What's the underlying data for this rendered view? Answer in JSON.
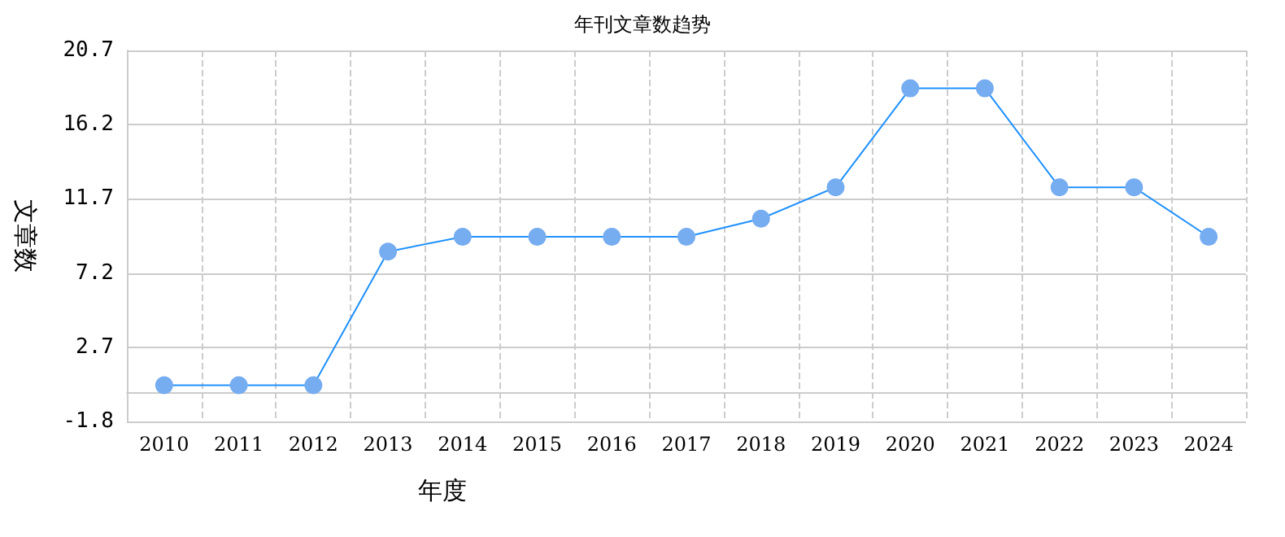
{
  "chart_data": {
    "type": "line",
    "title": "年刊文章数趋势",
    "xlabel": "年度",
    "ylabel": "文章数",
    "categories": [
      "2010",
      "2011",
      "2012",
      "2013",
      "2014",
      "2015",
      "2016",
      "2017",
      "2018",
      "2019",
      "2020",
      "2021",
      "2022",
      "2023",
      "2024"
    ],
    "series": [
      {
        "color": "#1e90ff",
        "values": [
          0.4,
          0.4,
          0.4,
          8.5,
          9.4,
          9.4,
          9.4,
          9.4,
          10.5,
          12.4,
          18.4,
          18.4,
          12.4,
          12.4,
          9.4
        ]
      }
    ],
    "ylim": [
      -1.8,
      20.7
    ],
    "yticks": [
      -1.8,
      2.7,
      7.2,
      11.7,
      16.2,
      20.7
    ],
    "grid": true,
    "marker": "circle",
    "line_style": "solid"
  }
}
